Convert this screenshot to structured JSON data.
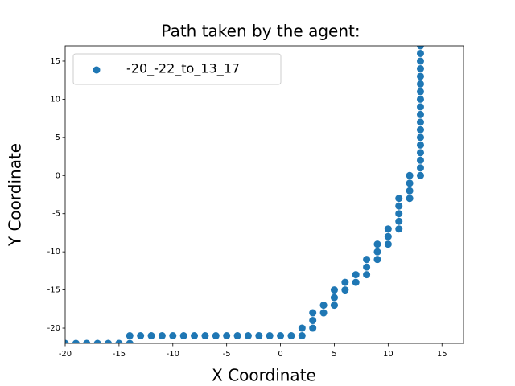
{
  "chart_data": {
    "type": "scatter",
    "title": "Path taken by the agent:",
    "x_label": "X Coordinate",
    "y_label": "Y Coordinate",
    "series": [
      {
        "name": "-20_-22_to_13_17",
        "color": "#1f77b4",
        "x": [
          -20,
          -19,
          -18,
          -17,
          -16,
          -15,
          -14,
          -14,
          -13,
          -12,
          -11,
          -10,
          -9,
          -8,
          -7,
          -6,
          -5,
          -4,
          -3,
          -2,
          -1,
          0,
          1,
          2,
          2,
          3,
          3,
          3,
          4,
          4,
          5,
          5,
          5,
          6,
          6,
          7,
          7,
          8,
          8,
          8,
          9,
          9,
          9,
          10,
          10,
          10,
          11,
          11,
          11,
          11,
          11,
          12,
          12,
          12,
          12,
          13,
          13,
          13,
          13,
          13,
          13,
          13,
          13,
          13,
          13,
          13,
          13,
          13,
          13,
          13,
          13,
          13,
          13
        ],
        "values": [
          -22,
          -22,
          -22,
          -22,
          -22,
          -22,
          -22,
          -21,
          -21,
          -21,
          -21,
          -21,
          -21,
          -21,
          -21,
          -21,
          -21,
          -21,
          -21,
          -21,
          -21,
          -21,
          -21,
          -21,
          -20,
          -20,
          -19,
          -18,
          -18,
          -17,
          -17,
          -16,
          -15,
          -15,
          -14,
          -14,
          -13,
          -13,
          -12,
          -11,
          -11,
          -10,
          -9,
          -9,
          -8,
          -7,
          -7,
          -6,
          -5,
          -4,
          -3,
          -3,
          -2,
          -1,
          0,
          0,
          1,
          2,
          3,
          4,
          5,
          6,
          7,
          8,
          9,
          10,
          11,
          12,
          13,
          14,
          15,
          16,
          17
        ]
      }
    ],
    "xlim": [
      -20,
      17
    ],
    "ylim": [
      -22,
      17
    ],
    "xticks": [
      -20,
      -15,
      -10,
      -5,
      0,
      5,
      10,
      15
    ],
    "yticks": [
      -20,
      -15,
      -10,
      -5,
      0,
      5,
      10,
      15
    ],
    "legend": "upper left"
  }
}
